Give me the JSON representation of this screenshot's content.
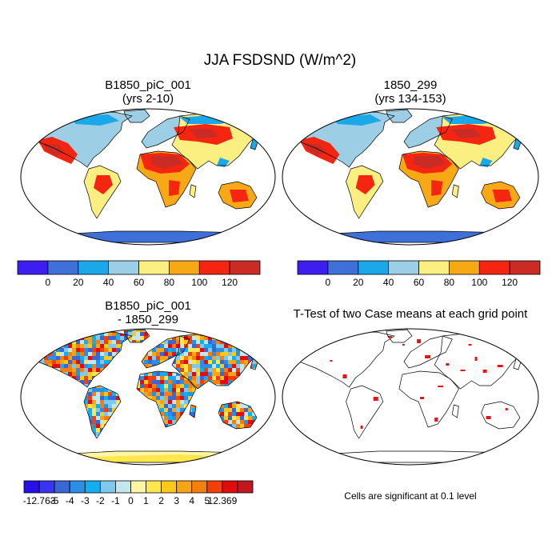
{
  "title": "JJA FSDSND (W/m^2)",
  "panels": [
    {
      "id": "p1",
      "title_line1": "B1850_piC_001",
      "title_line2": "(yrs 2-10)",
      "kind": "field"
    },
    {
      "id": "p2",
      "title_line1": "1850_299",
      "title_line2": "(yrs 134-153)",
      "kind": "field"
    },
    {
      "id": "p3",
      "title_line1": "B1850_piC_001",
      "title_line2": "- 1850_299",
      "kind": "diff"
    },
    {
      "id": "p4",
      "title_line1": "T-Test of two Case means at each grid point",
      "kind": "ttest"
    }
  ],
  "colorbar_field": {
    "colors": [
      "#3d1df0",
      "#3f6fd8",
      "#1aa8e8",
      "#9ccfe6",
      "#fbef82",
      "#f7a815",
      "#f42611",
      "#cb2b25"
    ],
    "labels": [
      "0",
      "20",
      "40",
      "60",
      "80",
      "100",
      "120"
    ]
  },
  "colorbar_diff": {
    "colors": [
      "#2a10e8",
      "#3a36f0",
      "#3a66d6",
      "#2c8fe6",
      "#12aef0",
      "#7fc8ee",
      "#c4e6ef",
      "#fff6a6",
      "#fde64e",
      "#fbc81c",
      "#f7a515",
      "#f47e0e",
      "#f2400b",
      "#e10d0d",
      "#c3171e"
    ],
    "labels": [
      "-12.763",
      "-5",
      "-4",
      "-3",
      "-2",
      "-1",
      "0",
      "1",
      "2",
      "3",
      "4",
      "5",
      "12.369"
    ]
  },
  "note": "Cells are significant at 0.1 level"
}
